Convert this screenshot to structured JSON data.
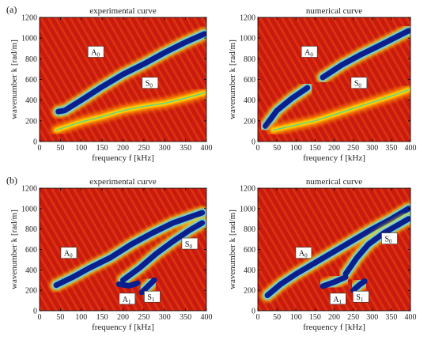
{
  "panel_labels": [
    "(a)",
    "(b)"
  ],
  "chart_data": [
    {
      "type": "heatmap",
      "panel": "(a)",
      "title": "experimental curve",
      "xlabel": "frequency f [kHz]",
      "ylabel": "wavenumber k [rad/m]",
      "xlim": [
        0,
        400
      ],
      "ylim": [
        0,
        1200
      ],
      "xticks": [
        0,
        50,
        100,
        150,
        200,
        250,
        300,
        350,
        400
      ],
      "yticks": [
        0,
        200,
        400,
        600,
        800,
        1000,
        1200
      ],
      "colors": {
        "background": "#c81a0e",
        "medium": "#ffdc00",
        "strong": "#0a1e8c"
      },
      "annotations": [
        {
          "text": "A0",
          "x": 135,
          "y": 860
        },
        {
          "text": "S0",
          "x": 265,
          "y": 560
        }
      ],
      "ridges": [
        {
          "name": "A0",
          "points": [
            [
              45,
              290
            ],
            [
              60,
              300
            ],
            [
              100,
              400
            ],
            [
              150,
              530
            ],
            [
              200,
              650
            ],
            [
              250,
              750
            ],
            [
              300,
              860
            ],
            [
              350,
              960
            ],
            [
              395,
              1040
            ]
          ],
          "level": "strong"
        },
        {
          "name": "S0",
          "points": [
            [
              40,
              110
            ],
            [
              100,
              190
            ],
            [
              150,
              240
            ],
            [
              200,
              300
            ],
            [
              250,
              340
            ],
            [
              300,
              370
            ],
            [
              350,
              420
            ],
            [
              395,
              470
            ]
          ],
          "level": "medium"
        }
      ]
    },
    {
      "type": "heatmap",
      "panel": "(a)",
      "title": "numerical curve",
      "xlabel": "frequency f [kHz]",
      "ylabel": "wavenumber k [rad/m]",
      "xlim": [
        0,
        400
      ],
      "ylim": [
        0,
        1200
      ],
      "xticks": [
        0,
        50,
        100,
        150,
        200,
        250,
        300,
        350,
        400
      ],
      "yticks": [
        0,
        200,
        400,
        600,
        800,
        1000,
        1200
      ],
      "colors": {
        "background": "#c81a0e",
        "medium": "#ffdc00",
        "strong": "#0a1e8c"
      },
      "annotations": [
        {
          "text": "A0",
          "x": 135,
          "y": 860
        },
        {
          "text": "S0",
          "x": 265,
          "y": 560
        }
      ],
      "ridges": [
        {
          "name": "A0",
          "points": [
            [
              20,
              150
            ],
            [
              50,
              300
            ],
            [
              90,
              420
            ],
            [
              130,
              520
            ]
          ],
          "level": "strong"
        },
        {
          "name": "A0",
          "points": [
            [
              170,
              620
            ],
            [
              220,
              740
            ],
            [
              270,
              840
            ],
            [
              320,
              930
            ],
            [
              395,
              1070
            ]
          ],
          "level": "strong"
        },
        {
          "name": "S0",
          "points": [
            [
              40,
              110
            ],
            [
              100,
              160
            ],
            [
              150,
              200
            ],
            [
              200,
              260
            ],
            [
              250,
              320
            ],
            [
              300,
              380
            ],
            [
              350,
              440
            ],
            [
              395,
              500
            ]
          ],
          "level": "medium"
        }
      ]
    },
    {
      "type": "heatmap",
      "panel": "(b)",
      "title": "experimental curve",
      "xlabel": "frequency f [kHz]",
      "ylabel": "wavenumber k [rad/m]",
      "xlim": [
        0,
        400
      ],
      "ylim": [
        0,
        1200
      ],
      "xticks": [
        0,
        50,
        100,
        150,
        200,
        250,
        300,
        350,
        400
      ],
      "yticks": [
        0,
        200,
        400,
        600,
        800,
        1000,
        1200
      ],
      "colors": {
        "background": "#c81a0e",
        "medium": "#ffdc00",
        "strong": "#0a1e8c"
      },
      "annotations": [
        {
          "text": "A0",
          "x": 70,
          "y": 560
        },
        {
          "text": "S0",
          "x": 360,
          "y": 650
        },
        {
          "text": "A1",
          "x": 210,
          "y": 110
        },
        {
          "text": "S1",
          "x": 270,
          "y": 130
        }
      ],
      "ridges": [
        {
          "name": "A0",
          "points": [
            [
              40,
              250
            ],
            [
              80,
              330
            ],
            [
              120,
              420
            ],
            [
              170,
              520
            ],
            [
              220,
              650
            ],
            [
              270,
              760
            ],
            [
              320,
              860
            ],
            [
              390,
              960
            ]
          ],
          "level": "strong"
        },
        {
          "name": "S0",
          "points": [
            [
              200,
              300
            ],
            [
              240,
              420
            ],
            [
              280,
              560
            ],
            [
              320,
              680
            ],
            [
              360,
              790
            ],
            [
              390,
              860
            ]
          ],
          "level": "strong"
        },
        {
          "name": "A1",
          "points": [
            [
              190,
              260
            ],
            [
              215,
              245
            ],
            [
              235,
              270
            ]
          ],
          "level": "strong"
        },
        {
          "name": "S1",
          "points": [
            [
              245,
              180
            ],
            [
              260,
              240
            ],
            [
              275,
              300
            ]
          ],
          "level": "strong"
        }
      ]
    },
    {
      "type": "heatmap",
      "panel": "(b)",
      "title": "numerical curve",
      "xlabel": "frequency f [kHz]",
      "ylabel": "wavenumber k [rad/m]",
      "xlim": [
        0,
        400
      ],
      "ylim": [
        0,
        1200
      ],
      "xticks": [
        0,
        50,
        100,
        150,
        200,
        250,
        300,
        350,
        400
      ],
      "yticks": [
        0,
        200,
        400,
        600,
        800,
        1000,
        1200
      ],
      "colors": {
        "background": "#c81a0e",
        "medium": "#ffdc00",
        "strong": "#0a1e8c"
      },
      "annotations": [
        {
          "text": "A0",
          "x": 120,
          "y": 560
        },
        {
          "text": "S0",
          "x": 345,
          "y": 700
        },
        {
          "text": "A1",
          "x": 210,
          "y": 110
        },
        {
          "text": "S1",
          "x": 270,
          "y": 130
        }
      ],
      "ridges": [
        {
          "name": "A0",
          "points": [
            [
              25,
              150
            ],
            [
              60,
              260
            ],
            [
              100,
              360
            ],
            [
              150,
              470
            ],
            [
              200,
              580
            ],
            [
              250,
              690
            ],
            [
              300,
              800
            ],
            [
              350,
              900
            ],
            [
              395,
              1000
            ]
          ],
          "level": "strong"
        },
        {
          "name": "S0",
          "points": [
            [
              230,
              360
            ],
            [
              260,
              520
            ],
            [
              290,
              650
            ],
            [
              330,
              760
            ],
            [
              395,
              900
            ]
          ],
          "level": "strong"
        },
        {
          "name": "A1",
          "points": [
            [
              170,
              240
            ],
            [
              200,
              280
            ],
            [
              230,
              330
            ]
          ],
          "level": "strong"
        },
        {
          "name": "S1",
          "points": [
            [
              250,
              200
            ],
            [
              265,
              250
            ],
            [
              280,
              290
            ]
          ],
          "level": "strong"
        }
      ]
    }
  ]
}
